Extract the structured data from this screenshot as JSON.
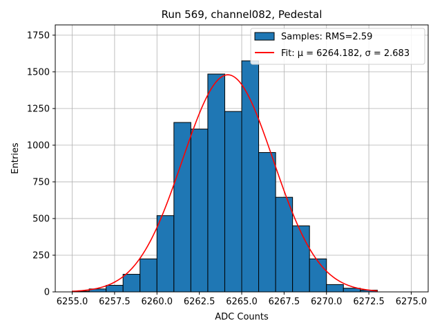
{
  "chart_data": {
    "type": "bar",
    "title": "Run 569, channel082, Pedestal",
    "xlabel": "ADC Counts",
    "ylabel": "Entries",
    "xlim": [
      6254.0,
      6276.0
    ],
    "ylim": [
      0,
      1820
    ],
    "xticks": [
      6255.0,
      6257.5,
      6260.0,
      6262.5,
      6265.0,
      6267.5,
      6270.0,
      6272.5,
      6275.0
    ],
    "xtick_labels": [
      "6255.0",
      "6257.5",
      "6260.0",
      "6262.5",
      "6265.0",
      "6267.5",
      "6270.0",
      "6272.5",
      "6275.0"
    ],
    "yticks": [
      0,
      250,
      500,
      750,
      1000,
      1250,
      1500,
      1750
    ],
    "ytick_labels": [
      "0",
      "250",
      "500",
      "750",
      "1000",
      "1250",
      "1500",
      "1750"
    ],
    "grid": true,
    "legend_position": "top-right",
    "bar_color": "#1f77b4",
    "fit_color": "#ff0000",
    "bin_edges": [
      6255,
      6256,
      6257,
      6258,
      6259,
      6260,
      6261,
      6262,
      6263,
      6264,
      6265,
      6266,
      6267,
      6268,
      6269,
      6270,
      6271,
      6272,
      6273
    ],
    "counts": [
      5,
      20,
      45,
      120,
      225,
      520,
      1155,
      1110,
      1485,
      1230,
      1575,
      950,
      645,
      450,
      225,
      50,
      25,
      12
    ],
    "series": [
      {
        "name": "Samples: RMS=2.59",
        "kind": "histogram"
      },
      {
        "name": "Fit: μ = 6264.182, σ = 2.683",
        "kind": "line",
        "mu": 6264.182,
        "sigma": 2.683,
        "amplitude": 1480,
        "x_range": [
          6255,
          6273
        ]
      }
    ]
  }
}
